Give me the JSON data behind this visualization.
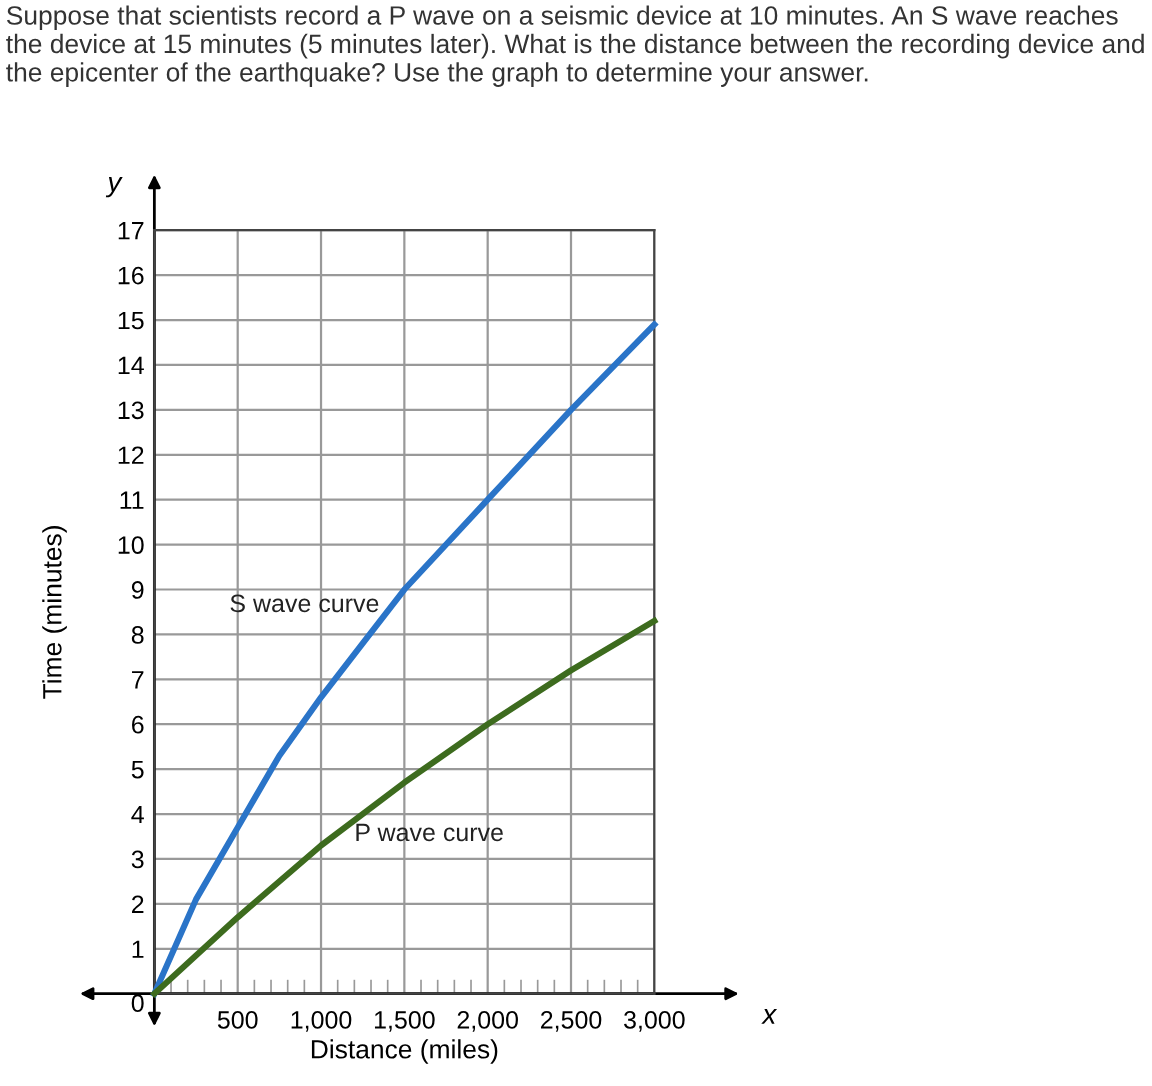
{
  "chart_data": {
    "type": "line",
    "title": "Suppose that scientists record a P wave on a seismic device at 10 minutes. An S wave reaches the device at 15 minutes (5 minutes later). What is the distance between the recording device and the epicenter of the earthquake? Use the graph to determine your answer.",
    "xlabel": "Distance (miles)",
    "ylabel": "Time (minutes)",
    "annotations": [
      "x",
      "y"
    ],
    "series": [
      {
        "name": "S wave curve",
        "color": "#2a74c8",
        "x": [
          0,
          250,
          500,
          750,
          1000,
          1250,
          1500,
          2000,
          2500,
          3000
        ],
        "values": [
          0,
          2.1,
          3.7,
          5.3,
          6.6,
          7.8,
          9,
          11,
          13,
          14.9
        ]
      },
      {
        "name": "P wave curve",
        "color": "#3d6b1e",
        "x": [
          0,
          500,
          1000,
          1500,
          2000,
          2500,
          3000
        ],
        "values": [
          0,
          1.7,
          3.3,
          4.7,
          6.0,
          7.2,
          8.3
        ]
      }
    ],
    "xlim": [
      0,
      3000
    ],
    "ylim": [
      0,
      17
    ],
    "xticks": [
      {
        "value": 100,
        "label": null
      },
      {
        "value": 200,
        "label": null
      },
      {
        "value": 300,
        "label": null
      },
      {
        "value": 400,
        "label": null
      },
      {
        "value": 500,
        "label": "500"
      },
      {
        "value": 600,
        "label": null
      },
      {
        "value": 700,
        "label": null
      },
      {
        "value": 800,
        "label": null
      },
      {
        "value": 900,
        "label": null
      },
      {
        "value": 1000,
        "label": "1,000"
      },
      {
        "value": 1100,
        "label": null
      },
      {
        "value": 1200,
        "label": null
      },
      {
        "value": 1300,
        "label": null
      },
      {
        "value": 1400,
        "label": null
      },
      {
        "value": 1500,
        "label": "1,500"
      },
      {
        "value": 1600,
        "label": null
      },
      {
        "value": 1700,
        "label": null
      },
      {
        "value": 1800,
        "label": null
      },
      {
        "value": 1900,
        "label": null
      },
      {
        "value": 2000,
        "label": "2,000"
      },
      {
        "value": 2100,
        "label": null
      },
      {
        "value": 2200,
        "label": null
      },
      {
        "value": 2300,
        "label": null
      },
      {
        "value": 2400,
        "label": null
      },
      {
        "value": 2500,
        "label": "2,500"
      },
      {
        "value": 2600,
        "label": null
      },
      {
        "value": 2700,
        "label": null
      },
      {
        "value": 2800,
        "label": null
      },
      {
        "value": 2900,
        "label": null
      },
      {
        "value": 3000,
        "label": "3,000"
      }
    ],
    "yticks": [
      0,
      1,
      2,
      3,
      4,
      5,
      6,
      7,
      8,
      9,
      10,
      11,
      12,
      13,
      14,
      15,
      16,
      17
    ],
    "grid": true,
    "legend": false,
    "marker": "none",
    "line_style": "solid"
  }
}
